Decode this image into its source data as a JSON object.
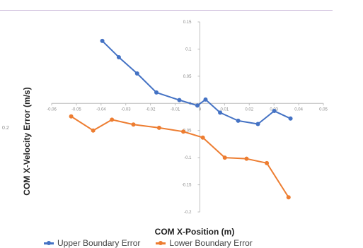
{
  "chart_data": {
    "type": "line",
    "title": "",
    "xlabel": "COM X-Position (m)",
    "ylabel": "COM X-Velocity Error (m/s)",
    "xlim": [
      -0.06,
      0.05
    ],
    "ylim": [
      -0.2,
      0.15
    ],
    "x_ticks": [
      -0.06,
      -0.05,
      -0.04,
      -0.03,
      -0.02,
      -0.01,
      0,
      0.01,
      0.02,
      0.03,
      0.04,
      0.05
    ],
    "y_ticks": [
      -0.2,
      -0.15,
      -0.1,
      -0.05,
      0,
      0.05,
      0.1,
      0.15
    ],
    "x_tick_labels": [
      "-0.06",
      "-0.05",
      "-0.04",
      "-0.03",
      "-0.02",
      "-0.01",
      "0",
      "0.01",
      "0.02",
      "0.03",
      "0.04",
      "0.05"
    ],
    "y_tick_labels": [
      "-0.2",
      "-0.15",
      "-0.1",
      "-0.05",
      "0",
      "0.05",
      "0.1",
      "0.15"
    ],
    "stray_tick_label": "0.2",
    "grid": false,
    "legend_position": "bottom",
    "series": [
      {
        "name": "Upper Boundary Error",
        "color": "#4472c4",
        "x": [
          -0.0395,
          -0.0328,
          -0.0254,
          -0.0176,
          -0.0083,
          -0.001,
          0.0023,
          0.0082,
          0.0155,
          0.0235,
          0.0301,
          0.0367
        ],
        "y": [
          0.115,
          0.085,
          0.055,
          0.02,
          0.006,
          -0.004,
          0.007,
          -0.017,
          -0.032,
          -0.038,
          -0.014,
          -0.028
        ]
      },
      {
        "name": "Lower Boundary Error",
        "color": "#ed7d31",
        "x": [
          -0.0521,
          -0.0432,
          -0.0356,
          -0.0269,
          -0.0165,
          -0.0067,
          0.0012,
          0.0101,
          0.0189,
          0.0271,
          0.0359
        ],
        "y": [
          -0.024,
          -0.05,
          -0.03,
          -0.039,
          -0.045,
          -0.052,
          -0.063,
          -0.1,
          -0.102,
          -0.11,
          -0.173
        ]
      }
    ]
  }
}
